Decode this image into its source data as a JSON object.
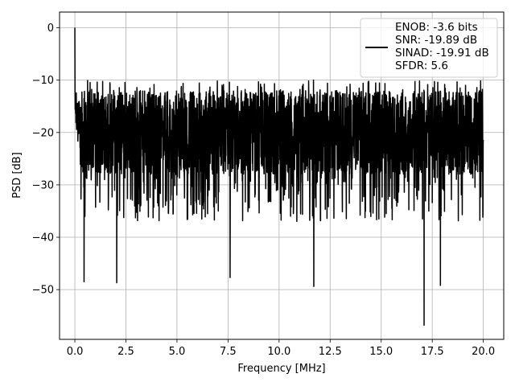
{
  "chart_data": {
    "type": "line",
    "title": "",
    "xlabel": "Frequency [MHz]",
    "ylabel": "PSD [dB]",
    "xlim": [
      -0.75,
      21.0
    ],
    "ylim": [
      -59.5,
      3.0
    ],
    "xticks": [
      0.0,
      2.5,
      5.0,
      7.5,
      10.0,
      12.5,
      15.0,
      17.5,
      20.0
    ],
    "xtick_labels": [
      "0.0",
      "2.5",
      "5.0",
      "7.5",
      "10.0",
      "12.5",
      "15.0",
      "17.5",
      "20.0"
    ],
    "yticks": [
      0,
      -10,
      -20,
      -30,
      -40,
      -50
    ],
    "ytick_labels": [
      "0",
      "−10",
      "−20",
      "−30",
      "−40",
      "−50"
    ],
    "grid": true,
    "legend_position": "top-right",
    "series": [
      {
        "color": "#000000",
        "x_range": [
          0.0,
          20.0
        ],
        "noise_floor_mean_db": -20,
        "peak": {
          "x": 0.0,
          "y": 0.0
        },
        "notable_dips": [
          {
            "x": 0.45,
            "y": -48.5
          },
          {
            "x": 2.05,
            "y": -48.7
          },
          {
            "x": 7.6,
            "y": -47.7
          },
          {
            "x": 11.7,
            "y": -49.4
          },
          {
            "x": 17.1,
            "y": -56.8
          },
          {
            "x": 17.9,
            "y": -49.2
          }
        ]
      }
    ],
    "legend": {
      "lines": [
        "ENOB: -3.6 bits",
        "SNR: -19.89 dB",
        "SINAD: -19.91 dB",
        "SFDR: 5.6"
      ]
    }
  }
}
